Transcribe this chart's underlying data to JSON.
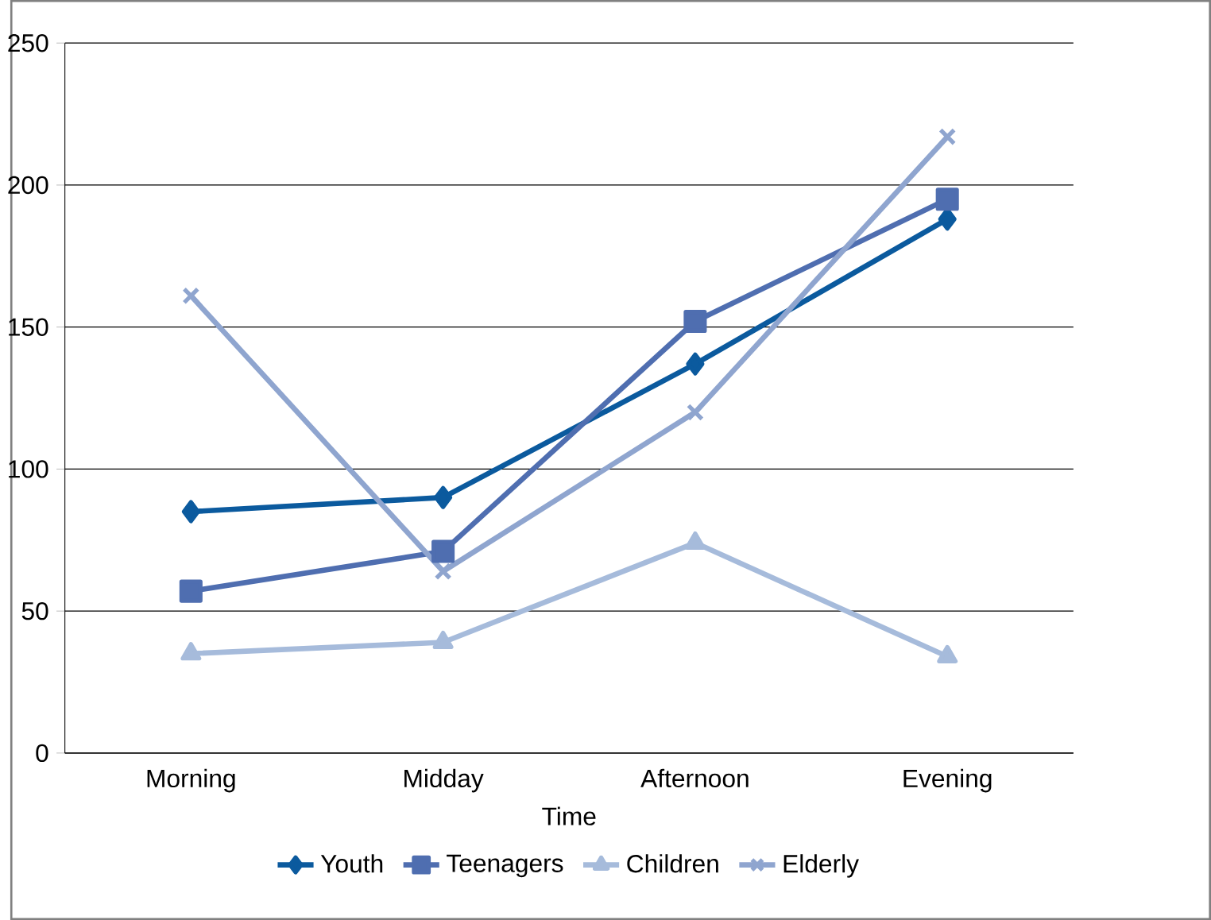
{
  "chart_data": {
    "type": "line",
    "xlabel": "Time",
    "categories": [
      "Morning",
      "Midday",
      "Afternoon",
      "Evening"
    ],
    "series": [
      {
        "name": "Youth",
        "color": "#0b5a9e",
        "marker": "diamond",
        "values": [
          85,
          90,
          137,
          188
        ]
      },
      {
        "name": "Teenagers",
        "color": "#4f6eb0",
        "marker": "square",
        "values": [
          57,
          71,
          152,
          195
        ]
      },
      {
        "name": "Children",
        "color": "#a6bbdb",
        "marker": "triangle",
        "values": [
          35,
          39,
          74,
          34
        ]
      },
      {
        "name": "Elderly",
        "color": "#8fa5cf",
        "marker": "cross",
        "values": [
          161,
          64,
          120,
          217
        ]
      }
    ],
    "ylim": [
      0,
      250
    ],
    "yticks": [
      0,
      50,
      100,
      150,
      200,
      250
    ],
    "grid": "y",
    "legend": "bottom"
  }
}
